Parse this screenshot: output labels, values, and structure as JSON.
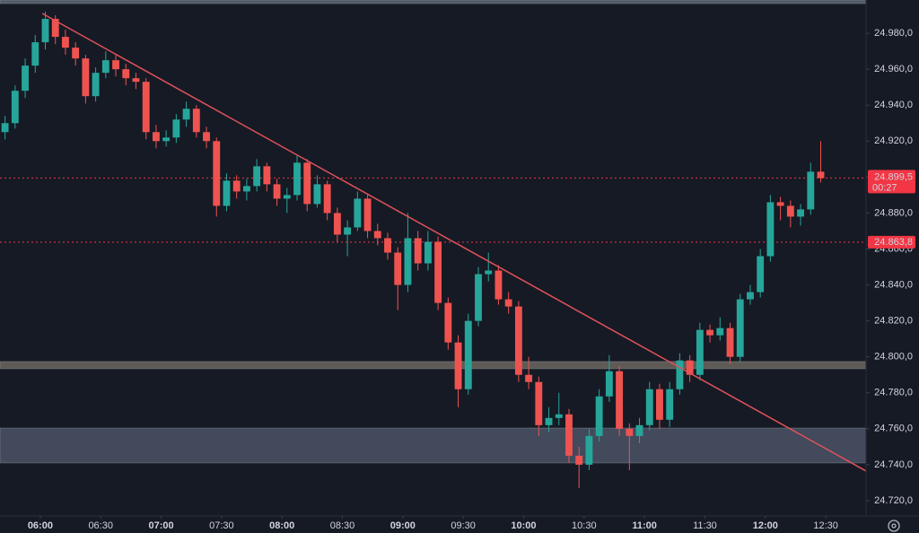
{
  "chart_data": {
    "type": "candlestick",
    "up_color": "#26a69a",
    "down_color": "#ef5350",
    "x": [
      "05:40",
      "05:45",
      "05:50",
      "05:55",
      "06:00",
      "06:05",
      "06:10",
      "06:15",
      "06:20",
      "06:25",
      "06:30",
      "06:35",
      "06:40",
      "06:45",
      "06:50",
      "06:55",
      "07:00",
      "07:05",
      "07:10",
      "07:15",
      "07:20",
      "07:25",
      "07:30",
      "07:35",
      "07:40",
      "07:45",
      "07:50",
      "07:55",
      "08:00",
      "08:05",
      "08:10",
      "08:15",
      "08:20",
      "08:25",
      "08:30",
      "08:35",
      "08:40",
      "08:45",
      "08:50",
      "08:55",
      "09:00",
      "09:05",
      "09:10",
      "09:15",
      "09:20",
      "09:25",
      "09:30",
      "09:35",
      "09:40",
      "09:45",
      "09:50",
      "09:55",
      "10:00",
      "10:05",
      "10:10",
      "10:15",
      "10:20",
      "10:25",
      "10:30",
      "10:35",
      "10:40",
      "10:45",
      "10:50",
      "10:55",
      "11:00",
      "11:05",
      "11:10",
      "11:15",
      "11:20",
      "11:25",
      "11:30",
      "11:35",
      "11:40",
      "11:45",
      "11:50",
      "11:55",
      "12:00",
      "12:05",
      "12:10",
      "12:15",
      "12:20",
      "12:25"
    ],
    "open": [
      24925,
      24930,
      24948,
      24962,
      24975,
      24988,
      24978,
      24972,
      24966,
      24945,
      24958,
      24965,
      24960,
      24955,
      24953,
      24925,
      24920,
      24922,
      24932,
      24938,
      24925,
      24920,
      24884,
      24898,
      24892,
      24895,
      24906,
      24896,
      24888,
      24890,
      24908,
      24885,
      24896,
      24880,
      24868,
      24872,
      24888,
      24870,
      24866,
      24858,
      24840,
      24866,
      24852,
      24864,
      24830,
      24808,
      24782,
      24820,
      24846,
      24848,
      24832,
      24828,
      24790,
      24786,
      24762,
      24766,
      24768,
      24745,
      24740,
      24756,
      24778,
      24792,
      24760,
      24756,
      24762,
      24782,
      24765,
      24782,
      24798,
      24790,
      24815,
      24812,
      24816,
      24800,
      24832,
      24836,
      24856,
      24886,
      24884,
      24878,
      24882,
      24903
    ],
    "high": [
      24934,
      24951,
      24966,
      24979,
      24992,
      24990,
      24982,
      24975,
      24968,
      24961,
      24970,
      24968,
      24963,
      24958,
      24955,
      24929,
      24926,
      24935,
      24942,
      24940,
      24928,
      24922,
      24902,
      24901,
      24899,
      24910,
      24908,
      24899,
      24894,
      24912,
      24910,
      24901,
      24898,
      24883,
      24876,
      24892,
      24890,
      24874,
      24869,
      24861,
      24880,
      24870,
      24870,
      24867,
      24833,
      24812,
      24824,
      24850,
      24858,
      24851,
      24836,
      24831,
      24800,
      24789,
      24772,
      24780,
      24771,
      24750,
      24760,
      24782,
      24801,
      24795,
      24763,
      24766,
      24786,
      24785,
      24786,
      24802,
      24801,
      24819,
      24818,
      24822,
      24819,
      24835,
      24840,
      24860,
      24890,
      24889,
      24887,
      24885,
      24908,
      24920
    ],
    "low": [
      24921,
      24927,
      24944,
      24958,
      24971,
      24974,
      24968,
      24962,
      24941,
      24942,
      24955,
      24956,
      24951,
      24949,
      24921,
      24916,
      24917,
      24919,
      24928,
      24922,
      24916,
      24878,
      24881,
      24888,
      24887,
      24892,
      24892,
      24884,
      24880,
      24887,
      24881,
      24883,
      24876,
      24864,
      24856,
      24870,
      24866,
      24862,
      24854,
      24826,
      24836,
      24848,
      24848,
      24826,
      24804,
      24772,
      24779,
      24817,
      24842,
      24829,
      24824,
      24786,
      24782,
      24756,
      24758,
      24762,
      24741,
      24727,
      24737,
      24753,
      24775,
      24756,
      24737,
      24752,
      24759,
      24760,
      24761,
      24779,
      24786,
      24787,
      24808,
      24809,
      24796,
      24797,
      24829,
      24833,
      24853,
      24876,
      24872,
      24873,
      24879,
      24897
    ],
    "close": [
      24930,
      24948,
      24962,
      24975,
      24988,
      24978,
      24972,
      24966,
      24945,
      24958,
      24965,
      24960,
      24955,
      24953,
      24925,
      24920,
      24922,
      24932,
      24938,
      24925,
      24920,
      24884,
      24898,
      24892,
      24895,
      24906,
      24896,
      24888,
      24890,
      24908,
      24885,
      24896,
      24880,
      24868,
      24872,
      24888,
      24870,
      24866,
      24858,
      24840,
      24866,
      24852,
      24864,
      24830,
      24808,
      24782,
      24820,
      24846,
      24848,
      24832,
      24828,
      24790,
      24786,
      24762,
      24766,
      24768,
      24745,
      24740,
      24756,
      24778,
      24792,
      24760,
      24756,
      24762,
      24782,
      24765,
      24782,
      24798,
      24790,
      24815,
      24812,
      24816,
      24800,
      24832,
      24836,
      24856,
      24886,
      24884,
      24878,
      24882,
      24903,
      24899.5
    ],
    "xlim": [
      "05:40",
      "12:50"
    ],
    "xticks": [
      "06:00",
      "06:30",
      "07:00",
      "07:30",
      "08:00",
      "08:30",
      "09:00",
      "09:30",
      "10:00",
      "10:30",
      "11:00",
      "11:30",
      "12:00",
      "12:30"
    ],
    "ylim": [
      24711.5,
      24998.5
    ],
    "yticks": [
      {
        "value": 24720,
        "label": "24.720,0"
      },
      {
        "value": 24740,
        "label": "24.740,0"
      },
      {
        "value": 24760,
        "label": "24.760,0"
      },
      {
        "value": 24780,
        "label": "24.780,0"
      },
      {
        "value": 24800,
        "label": "24.800,0"
      },
      {
        "value": 24820,
        "label": "24.820,0"
      },
      {
        "value": 24840,
        "label": "24.840,0"
      },
      {
        "value": 24860,
        "label": "24.860,0"
      },
      {
        "value": 24880,
        "label": "24.880,0"
      },
      {
        "value": 24900,
        "label": "24.900,0"
      },
      {
        "value": 24920,
        "label": "24.920,0"
      },
      {
        "value": 24940,
        "label": "24.940,0"
      },
      {
        "value": 24960,
        "label": "24.960,0"
      },
      {
        "value": 24980,
        "label": "24.980,0"
      }
    ],
    "zones": [
      {
        "from": 24996.5,
        "to": 24998.5,
        "color": "#5d6677"
      },
      {
        "from": 24793.4,
        "to": 24797.4,
        "color": "#6b665e"
      },
      {
        "from": 24741,
        "to": 24760.4,
        "color": "#4a5366"
      }
    ],
    "trendline": {
      "x": [
        "06:01",
        "12:50"
      ],
      "y": [
        24991,
        24736.5
      ],
      "color": "#e0525a"
    },
    "current_price": {
      "value": 24899.5,
      "label": "24.899,5",
      "countdown": "00:27",
      "color": "#f23645"
    },
    "price_lines": [
      {
        "value": 24863.8,
        "label": "24.863,8",
        "color": "#f23645"
      }
    ]
  }
}
